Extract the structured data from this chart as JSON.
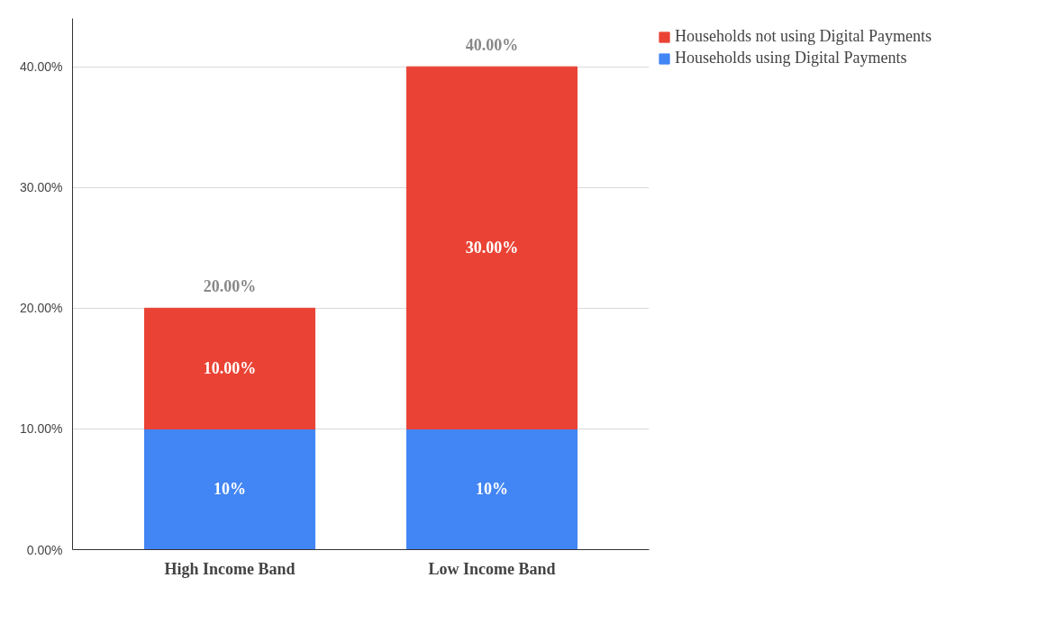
{
  "chart_data": {
    "type": "bar",
    "stacked": true,
    "categories": [
      "High Income Band",
      "Low Income Band"
    ],
    "series": [
      {
        "name": "Households using Digital Payments",
        "color": "#4285f4",
        "values": [
          10,
          10
        ],
        "value_labels": [
          "10%",
          "10%"
        ]
      },
      {
        "name": "Households not using Digital Payments",
        "color": "#ea4335",
        "values": [
          10,
          30
        ],
        "value_labels": [
          "10.00%",
          "30.00%"
        ]
      }
    ],
    "totals": [
      "20.00%",
      "40.00%"
    ],
    "ylim": [
      0,
      44
    ],
    "yticks": [
      {
        "value": 0,
        "label": "0.00%"
      },
      {
        "value": 10,
        "label": "10.00%"
      },
      {
        "value": 20,
        "label": "20.00%"
      },
      {
        "value": 30,
        "label": "30.00%"
      },
      {
        "value": 40,
        "label": "40.00%"
      }
    ],
    "grid": "y",
    "legend": "top right"
  }
}
